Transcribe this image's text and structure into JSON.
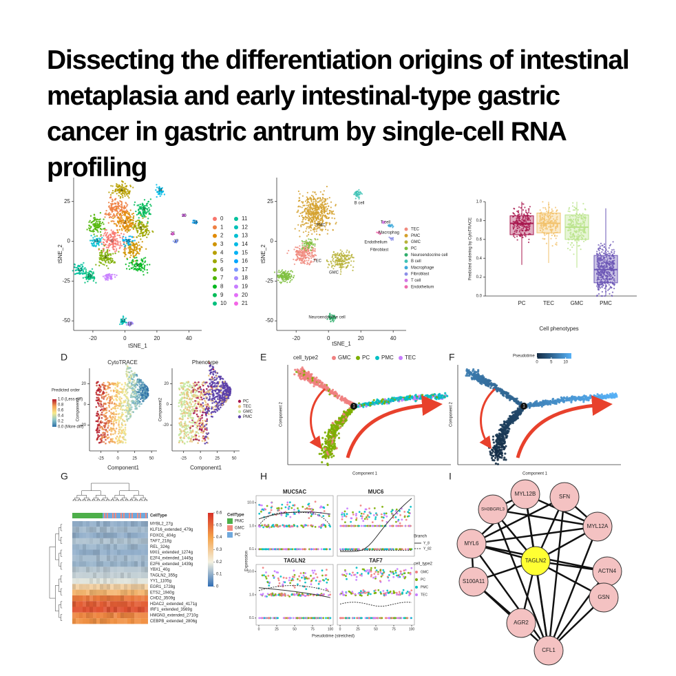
{
  "title": "Dissecting the differentiation origins of intestinal metaplasia and early intestinal-type gastric cancer in gastric antrum by single-cell RNA profiling",
  "panels": {
    "a": {
      "x_label": "tSNE_1",
      "y_label": "tSNE_2",
      "xlim": [
        -32,
        48
      ],
      "ylim": [
        -56,
        40
      ],
      "xticks": [
        -20,
        0,
        20,
        40
      ],
      "yticks": [
        25,
        0,
        -25,
        -50
      ],
      "clusters": [
        {
          "name": "0",
          "color": "#F8766D"
        },
        {
          "name": "1",
          "color": "#EE8043"
        },
        {
          "name": "2",
          "color": "#E18A00"
        },
        {
          "name": "3",
          "color": "#CF9400"
        },
        {
          "name": "4",
          "color": "#B79F00"
        },
        {
          "name": "5",
          "color": "#9DA700"
        },
        {
          "name": "6",
          "color": "#7CAE00"
        },
        {
          "name": "7",
          "color": "#4BB400"
        },
        {
          "name": "8",
          "color": "#00B81F"
        },
        {
          "name": "9",
          "color": "#00BC59"
        },
        {
          "name": "10",
          "color": "#00BF7D"
        },
        {
          "name": "11",
          "color": "#00C19C"
        },
        {
          "name": "12",
          "color": "#00C1B8"
        },
        {
          "name": "13",
          "color": "#00BFD1"
        },
        {
          "name": "14",
          "color": "#00BAE5"
        },
        {
          "name": "15",
          "color": "#00B2F4"
        },
        {
          "name": "16",
          "color": "#00A5FF"
        },
        {
          "name": "17",
          "color": "#7997FF"
        },
        {
          "name": "18",
          "color": "#A58AFF"
        },
        {
          "name": "19",
          "color": "#C77CFF"
        },
        {
          "name": "20",
          "color": "#E26EF7"
        },
        {
          "name": "21",
          "color": "#F365E6"
        }
      ],
      "cluster_labels": [
        "4",
        "2",
        "9",
        "13",
        "0",
        "15",
        "6",
        "8",
        "5",
        "11",
        "10",
        "14",
        "20",
        "16",
        "21",
        "17",
        "12",
        "18"
      ]
    },
    "b": {
      "x_label": "tSNE_1",
      "y_label": "tSNE_2",
      "xlim": [
        -32,
        48
      ],
      "ylim": [
        -56,
        40
      ],
      "xticks": [
        -20,
        0,
        20,
        40
      ],
      "yticks": [
        25,
        0,
        -25,
        -50
      ],
      "legend": [
        {
          "name": "TEC",
          "color": "#F08A7E"
        },
        {
          "name": "PMC",
          "color": "#D4A02B"
        },
        {
          "name": "GMC",
          "color": "#B8B33A"
        },
        {
          "name": "PC",
          "color": "#7FBF3F"
        },
        {
          "name": "Neuroendocrine cell",
          "color": "#2FAE6B"
        },
        {
          "name": "B cell",
          "color": "#3FC3B6"
        },
        {
          "name": "Macrophage",
          "color": "#3EA9DB"
        },
        {
          "name": "Fibroblast",
          "color": "#8B8FE8"
        },
        {
          "name": "T cell",
          "color": "#D274E3"
        },
        {
          "name": "Endothelium",
          "color": "#EE6AAE"
        }
      ],
      "plot_labels": [
        "PMC",
        "TEC",
        "GMC",
        "B cell",
        "T cell",
        "Macrophag",
        "Endothelium",
        "Fibroblast",
        "Neuroendocrine cell"
      ]
    },
    "c": {
      "x_label": "Cell phenotypes",
      "y_label": "Predicted ordering by CytoTRACE",
      "ylim": [
        0,
        1
      ],
      "yticks": [
        {
          "value": 0,
          "label": "0.0"
        },
        0.2,
        0.4,
        0.6,
        0.8,
        {
          "value": 1,
          "label": "1.0"
        }
      ],
      "boxes": [
        {
          "name": "PC",
          "color": "#A8174E",
          "whisker_low": 0.33,
          "q1": 0.65,
          "median": 0.77,
          "q3": 0.85,
          "whisker_high": 1.0
        },
        {
          "name": "TEC",
          "color": "#F2C26B",
          "whisker_low": 0.35,
          "q1": 0.67,
          "median": 0.77,
          "q3": 0.88,
          "whisker_high": 1.0
        },
        {
          "name": "GMC",
          "color": "#B9E38A",
          "whisker_low": 0.3,
          "q1": 0.6,
          "median": 0.73,
          "q3": 0.86,
          "whisker_high": 1.0
        },
        {
          "name": "PMC",
          "color": "#6A55B5",
          "whisker_low": 0.0,
          "q1": 0.14,
          "median": 0.28,
          "q3": 0.43,
          "whisker_high": 0.93
        }
      ]
    },
    "d": {
      "letter": "D",
      "titles": [
        "CytoTRACE",
        "Phenotype"
      ],
      "x_label": "Component1",
      "y_label": "Component2",
      "xlim": [
        -42,
        58
      ],
      "ylim": [
        -45,
        35
      ],
      "xticks": [
        -25,
        0,
        25,
        50
      ],
      "yticks": [
        20,
        0,
        -20
      ],
      "order_legend_title": "Predicted order",
      "order_legend": [
        "1.0 (Less diff)",
        "0.8",
        "0.6",
        "0.4",
        "0.2",
        "0.0 (More diff)"
      ],
      "order_colors": [
        "#B2182B",
        "#F4A155",
        "#F7E98B",
        "#8CC5C9",
        "#2C6FA6"
      ],
      "phenotype_legend": [
        {
          "name": "PC",
          "color": "#A8174E"
        },
        {
          "name": "TEC",
          "color": "#E9C27A"
        },
        {
          "name": "GMC",
          "color": "#C6E8A0"
        },
        {
          "name": "PMC",
          "color": "#5B3FA8"
        }
      ]
    },
    "e": {
      "letter": "E",
      "legend_title": "cell_type2",
      "x_label": "Component 1",
      "y_label": "Component 2",
      "branch_label": "1",
      "legend": [
        {
          "name": "GMC",
          "color": "#F08080"
        },
        {
          "name": "PC",
          "color": "#7CAE00"
        },
        {
          "name": "PMC",
          "color": "#00BFC4"
        },
        {
          "name": "TEC",
          "color": "#C77CFF"
        }
      ]
    },
    "f": {
      "letter": "F",
      "legend_title": "Pseudotime",
      "x_label": "Component 1",
      "y_label": "Component 2",
      "branch_label": "1",
      "clim": [
        0,
        12
      ],
      "ticks": [
        0,
        5,
        10
      ],
      "colors": [
        "#132B43",
        "#56B1F7"
      ]
    },
    "g": {
      "letter": "G",
      "legend_title": "CellType",
      "clim": [
        0,
        0.6
      ],
      "ticks": [
        0.6,
        0.5,
        0.4,
        0.3,
        0.2,
        0.1,
        0
      ],
      "scale_colors": [
        "#2F6DB5",
        "#F4F1E0",
        "#F5A34A",
        "#D73027"
      ],
      "cell_types": [
        {
          "name": "PMC",
          "color": "#4DAF4A"
        },
        {
          "name": "GMC",
          "color": "#F08A7E"
        },
        {
          "name": "PC",
          "color": "#6FA8DC"
        }
      ],
      "rows": [
        {
          "label": "MYBL2_27g",
          "level": 0.1
        },
        {
          "label": "KLF16_extended_479g",
          "level": 0.12
        },
        {
          "label": "FOXO1_404g",
          "level": 0.1
        },
        {
          "label": "TAF7_218g",
          "level": 0.13
        },
        {
          "label": "REL_324g",
          "level": 0.11
        },
        {
          "label": "MXI1_extended_1274g",
          "level": 0.1
        },
        {
          "label": "E2F4_extended_1445g",
          "level": 0.12
        },
        {
          "label": "E2F6_extended_1439g",
          "level": 0.11
        },
        {
          "label": "YBX1_40g",
          "level": 0.14
        },
        {
          "label": "TAGLN2_355g",
          "level": 0.15
        },
        {
          "label": "YY1_1105g",
          "level": 0.18
        },
        {
          "label": "EGR1_1728g",
          "level": 0.28
        },
        {
          "label": "ETS2_1940g",
          "level": 0.35
        },
        {
          "label": "CHD2_3509g",
          "level": 0.47
        },
        {
          "label": "HDAC2_extended_4171g",
          "level": 0.52
        },
        {
          "label": "IRF1_extended_3569g",
          "level": 0.54
        },
        {
          "label": "HMGN3_extended_2710g",
          "level": 0.45
        },
        {
          "label": "CEBPB_extended_2806g",
          "level": 0.43
        }
      ]
    },
    "h": {
      "letter": "H",
      "titles": [
        "MUC5AC",
        "MUC6",
        "TAGLN2",
        "TAF7"
      ],
      "y_label": "Expression",
      "x_label": "Pseudotime (stretched)",
      "xticks": [
        0,
        25,
        50,
        75,
        100
      ],
      "yticks": [
        {
          "value": 10,
          "label": "10.0"
        },
        {
          "value": 1,
          "label": "1.0"
        },
        0.1
      ],
      "branch_title": "Branch",
      "branches": [
        "Y_8",
        "Y_82"
      ],
      "legend_title": "cell_type2",
      "legend": [
        {
          "name": "GMC",
          "color": "#F08080"
        },
        {
          "name": "PC",
          "color": "#7CAE00"
        },
        {
          "name": "PMC",
          "color": "#00BFC4"
        },
        {
          "name": "TEC",
          "color": "#C77CFF"
        }
      ]
    },
    "i": {
      "letter": "I",
      "nodes": [
        "MYL12B",
        "SFN",
        "SH3BGRL3",
        "MYL12A",
        "MYL6",
        "ACTN4",
        "TAGLN2",
        "S100A11",
        "GSN",
        "AGR2",
        "CFL1"
      ]
    }
  }
}
